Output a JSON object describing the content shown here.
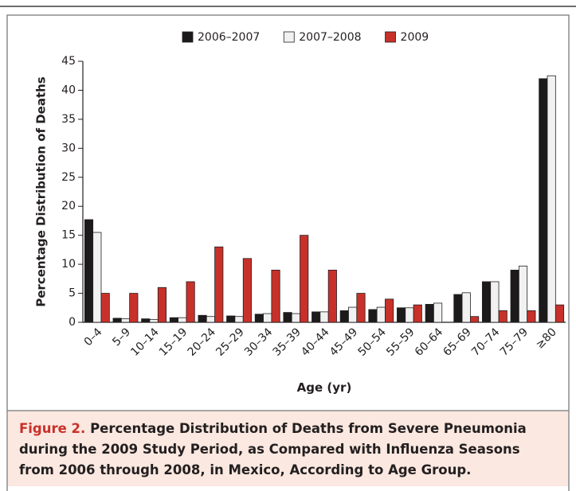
{
  "chart_data": {
    "type": "bar",
    "categories": [
      "0–4",
      "5–9",
      "10–14",
      "15–19",
      "20–24",
      "25–29",
      "30–34",
      "35–39",
      "40–44",
      "45–49",
      "50–54",
      "55–59",
      "60–64",
      "65–69",
      "70–74",
      "75–79",
      "≥80"
    ],
    "series": [
      {
        "name": "2006–2007",
        "color": "#1c1a1b",
        "values": [
          17.7,
          0.7,
          0.6,
          0.8,
          1.2,
          1.1,
          1.4,
          1.7,
          1.8,
          2.0,
          2.2,
          2.5,
          3.1,
          4.8,
          7.0,
          9.0,
          42.0
        ]
      },
      {
        "name": "2007–2008",
        "color": "#f1f1f1",
        "values": [
          15.5,
          0.6,
          0.5,
          0.8,
          1.0,
          1.0,
          1.5,
          1.5,
          1.8,
          2.6,
          2.6,
          2.5,
          3.3,
          5.1,
          7.0,
          9.7,
          42.5
        ]
      },
      {
        "name": "2009",
        "color": "#c8312a",
        "values": [
          5,
          5,
          6,
          7,
          13,
          11,
          9,
          15,
          9,
          5,
          4,
          3,
          0,
          1,
          2,
          2,
          3
        ]
      }
    ],
    "ylim": [
      0,
      45
    ],
    "yticks": [
      0,
      5,
      10,
      15,
      20,
      25,
      30,
      35,
      40,
      45
    ],
    "ylabel": "Percentage Distribution of Deaths",
    "xlabel": "Age (yr)",
    "grid": false,
    "legend": "top"
  },
  "caption": {
    "label": "Figure 2.",
    "text": "Percentage Distribution of Deaths from Severe Pneumonia during the 2009 Study Period, as Compared with Influenza Seasons from 2006 through 2008, in Mexico, According to Age Group."
  }
}
